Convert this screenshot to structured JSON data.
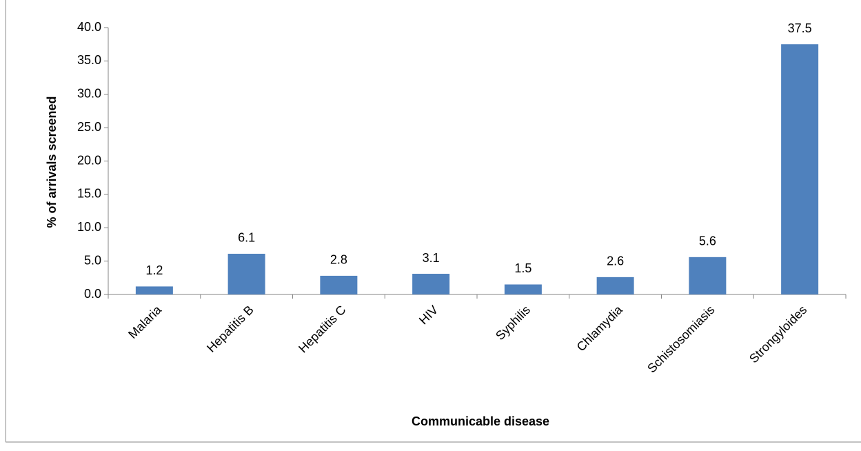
{
  "chart_data": {
    "type": "bar",
    "x_label": "Communicable disease",
    "y_label": "% of arrivals screened",
    "categories": [
      "Malaria",
      "Hepatitis B",
      "Hepatitis C",
      "HIV",
      "Syphilis",
      "Chlamydia",
      "Schistosomiasis",
      "Strongyloides"
    ],
    "values": [
      1.2,
      6.1,
      2.8,
      3.1,
      1.5,
      2.6,
      5.6,
      37.5
    ],
    "color": "#4f81bd",
    "ylim": [
      0,
      40
    ],
    "yticks": [
      {
        "value": 0,
        "label": "0.0"
      },
      {
        "value": 5,
        "label": "5.0"
      },
      {
        "value": 10,
        "label": "10.0"
      },
      {
        "value": 15,
        "label": "15.0"
      },
      {
        "value": 20,
        "label": "20.0"
      },
      {
        "value": 25,
        "label": "25.0"
      },
      {
        "value": 30,
        "label": "30.0"
      },
      {
        "value": 35,
        "label": "35.0"
      },
      {
        "value": 40,
        "label": "40.0"
      }
    ],
    "grid": false
  }
}
